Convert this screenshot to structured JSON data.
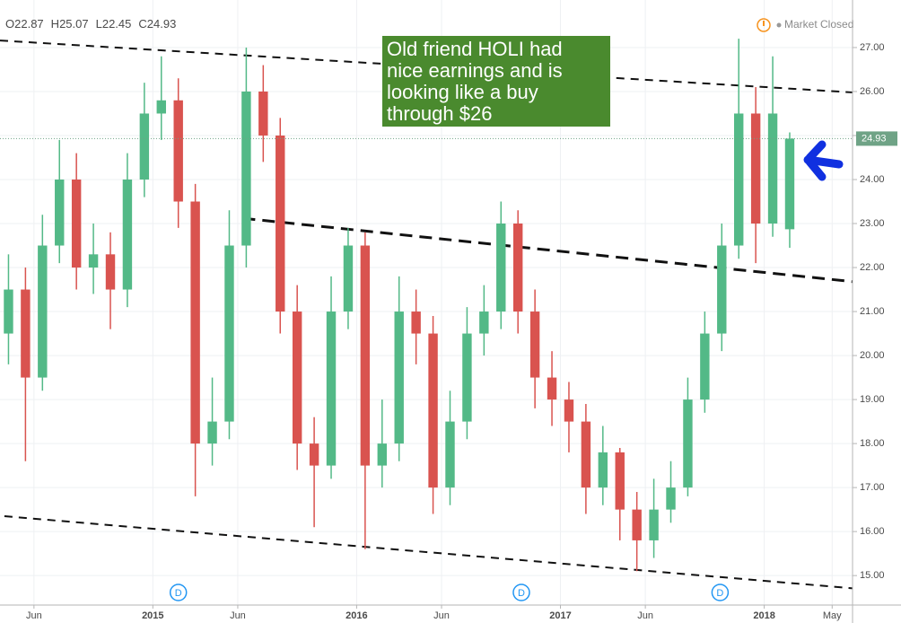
{
  "chart_data": {
    "type": "candlestick",
    "header": {
      "labels": [
        "O",
        "H",
        "L",
        "C"
      ]
    },
    "status": "Market Closed",
    "x": [
      0.5,
      1.5,
      2.5,
      3.5,
      4.5,
      5.5,
      6.5,
      7.5,
      8.5,
      9.5,
      10.5,
      11.5,
      12.5,
      13.5,
      14.5,
      15.5,
      16.5,
      17.5,
      18.5,
      19.5,
      20.5,
      21.5,
      22.5,
      23.5,
      24.5,
      25.5,
      26.5,
      27.5,
      28.5,
      29.5,
      30.5,
      31.5,
      32.5,
      33.5,
      34.5,
      35.5,
      36.5,
      37.5,
      38.5,
      39.5,
      40.5,
      41.5,
      42.5,
      43.5,
      44.5,
      45.5,
      46.5
    ],
    "open": [
      20.5,
      21.5,
      19.5,
      22.5,
      24,
      22,
      22.3,
      21.5,
      24,
      25.5,
      25.8,
      23.5,
      18,
      18.5,
      22.5,
      26,
      25,
      21,
      18,
      17.5,
      21,
      22.5,
      17.5,
      18,
      21,
      20.5,
      17,
      18.5,
      20.5,
      21,
      23,
      21,
      19.5,
      19,
      18.5,
      17,
      17.8,
      16.5,
      15.8,
      16.5,
      17,
      19,
      20.5,
      22.5,
      25.5,
      23,
      22.87
    ],
    "high": [
      22.3,
      22.0,
      23.2,
      24.9,
      24.6,
      23.0,
      22.8,
      24.6,
      26.2,
      26.8,
      26.3,
      23.9,
      19.5,
      23.3,
      27.0,
      26.6,
      25.4,
      21.6,
      18.6,
      21.8,
      22.9,
      22.8,
      19.0,
      21.8,
      21.5,
      20.9,
      19.2,
      21.1,
      21.6,
      23.5,
      23.3,
      21.5,
      20.1,
      19.4,
      18.9,
      18.4,
      17.9,
      16.9,
      17.2,
      17.6,
      19.5,
      21.0,
      23.0,
      27.2,
      26.1,
      26.8,
      25.07
    ],
    "low": [
      19.8,
      17.6,
      19.2,
      22.1,
      21.5,
      21.4,
      20.6,
      21.1,
      23.6,
      24.9,
      22.9,
      16.8,
      17.5,
      18.1,
      22.0,
      24.4,
      20.5,
      17.4,
      16.1,
      17.2,
      20.6,
      15.6,
      17.0,
      17.6,
      19.8,
      16.4,
      16.6,
      18.1,
      20.0,
      20.6,
      20.5,
      18.8,
      18.4,
      17.8,
      16.4,
      16.6,
      15.8,
      15.1,
      15.4,
      16.2,
      16.8,
      18.7,
      20.1,
      22.2,
      22.1,
      22.7,
      22.45
    ],
    "close": [
      21.5,
      19.5,
      22.5,
      24,
      22,
      22.3,
      21.5,
      24,
      25.5,
      25.8,
      23.5,
      18,
      18.5,
      22.5,
      26,
      25,
      21,
      18,
      17.5,
      21,
      22.5,
      17.5,
      18,
      21,
      20.5,
      17,
      18.5,
      20.5,
      21,
      23,
      21,
      19.5,
      19,
      18.5,
      17,
      17.8,
      16.5,
      15.8,
      16.5,
      17,
      19,
      20.5,
      22.5,
      25.5,
      23,
      25.5,
      24.93
    ],
    "colors": {
      "up": "#53b987",
      "down": "#d9534f",
      "price_label": "#6fa386"
    },
    "xlim": [
      0,
      50.2
    ],
    "xticks": [
      {
        "value": 2,
        "label": "Jun"
      },
      {
        "value": 9,
        "label": "2015"
      },
      {
        "value": 14,
        "label": "Jun"
      },
      {
        "value": 21,
        "label": "2016"
      },
      {
        "value": 26,
        "label": "Jun"
      },
      {
        "value": 33,
        "label": "2017"
      },
      {
        "value": 38,
        "label": "Jun"
      },
      {
        "value": 45,
        "label": "2018"
      },
      {
        "value": 49,
        "label": "May"
      }
    ],
    "ylim": [
      14.33,
      28.08
    ],
    "yticks": [
      {
        "value": 15,
        "label": "15.00"
      },
      {
        "value": 16,
        "label": "16.00"
      },
      {
        "value": 17,
        "label": "17.00"
      },
      {
        "value": 18,
        "label": "18.00"
      },
      {
        "value": 19,
        "label": "19.00"
      },
      {
        "value": 20,
        "label": "20.00"
      },
      {
        "value": 21,
        "label": "21.00"
      },
      {
        "value": 22,
        "label": "22.00"
      },
      {
        "value": 23,
        "label": "23.00"
      },
      {
        "value": 24,
        "label": "24.00"
      },
      {
        "value": 25,
        "label": "25.00"
      },
      {
        "value": 26,
        "label": "26.00"
      },
      {
        "value": 27,
        "label": "27.00"
      }
    ],
    "grid": true,
    "trendlines": [
      {
        "x": [
          0,
          50.2
        ],
        "y": [
          27.16,
          25.98
        ]
      },
      {
        "x": [
          14.29,
          50.2
        ],
        "y": [
          23.12,
          21.68
        ]
      },
      {
        "x": [
          0.26,
          50.2
        ],
        "y": [
          16.35,
          14.71
        ]
      }
    ],
    "dividends": {
      "x": [
        10.5,
        30.7,
        42.4
      ],
      "label": "D"
    },
    "annotation": {
      "lines": [
        "Old friend HOLI had",
        "nice earnings and is",
        "looking like a buy",
        "through $26"
      ],
      "color": "#4a8a2e"
    }
  }
}
